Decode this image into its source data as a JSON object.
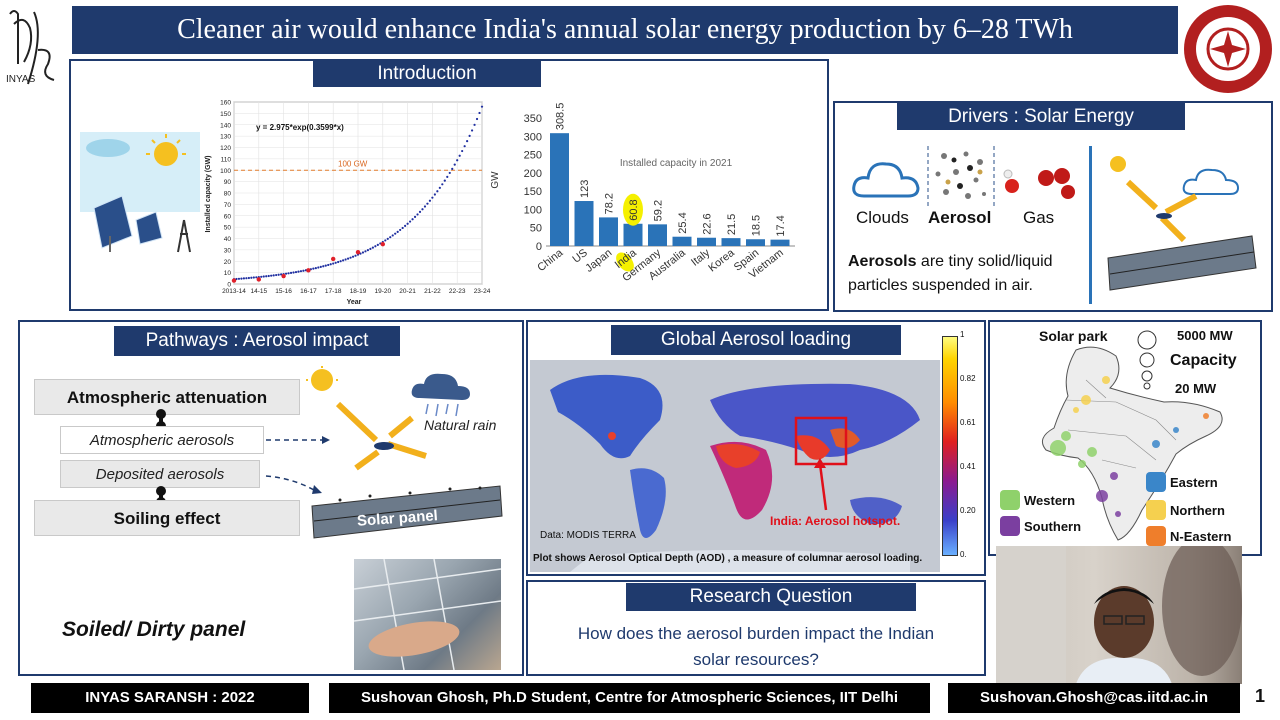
{
  "title": "Cleaner air would enhance India's annual solar energy production by 6–28 TWh",
  "left_logo": "INYAS",
  "intro": {
    "heading": "Introduction",
    "equation": "y = 2.975*exp(0.3599*x)",
    "threshold_label": "100 GW",
    "growth_chart": {
      "ylabel": "Installed capacity (GW)",
      "xlabel": "Year",
      "yticks": [
        "0",
        "10",
        "20",
        "30",
        "40",
        "50",
        "60",
        "70",
        "80",
        "90",
        "100",
        "110",
        "120",
        "130",
        "140",
        "150",
        "160"
      ],
      "xticks": [
        "2013-14",
        "14-15",
        "15-16",
        "16-17",
        "17-18",
        "18-19",
        "19-20",
        "20-21",
        "21-22",
        "22-23",
        "23-24"
      ]
    },
    "bar_chart": {
      "ylabel": "GW",
      "annotation": "Installed capacity in 2021",
      "yticks": [
        "0",
        "50",
        "100",
        "150",
        "200",
        "250",
        "300",
        "350"
      ]
    }
  },
  "chart_data": [
    {
      "type": "line",
      "title": "",
      "xlabel": "Year",
      "ylabel": "Installed capacity (GW)",
      "ylim": [
        0,
        160
      ],
      "x": [
        "2013-14",
        "14-15",
        "15-16",
        "16-17",
        "17-18",
        "18-19",
        "19-20",
        "20-21",
        "21-22",
        "22-23",
        "23-24"
      ],
      "series": [
        {
          "name": "",
          "values": [
            3,
            4,
            7,
            12,
            22,
            28,
            35,
            null,
            null,
            null,
            null
          ]
        }
      ],
      "fit": "y = 2.975*exp(0.3599*x)",
      "reference_line": 100
    },
    {
      "type": "bar",
      "title": "Installed capacity in 2021",
      "ylabel": "GW",
      "ylim": [
        0,
        350
      ],
      "categories": [
        "China",
        "US",
        "Japan",
        "India",
        "Germany",
        "Australia",
        "Italy",
        "Korea",
        "Spain",
        "Vietnam"
      ],
      "values": [
        308.5,
        123,
        78.2,
        60.8,
        59.2,
        25.4,
        22.6,
        21.5,
        18.5,
        17.4
      ],
      "value_labels": [
        "308.5",
        "123",
        "78.2",
        "60.8",
        "59.2",
        "25.4",
        "22.6",
        "21.5",
        "18.5",
        "17.4"
      ],
      "highlight": "India"
    }
  ],
  "drivers": {
    "heading": "Drivers : Solar Energy",
    "labels": {
      "clouds": "Clouds",
      "aerosol": "Aerosol",
      "gas": "Gas"
    },
    "desc_bold": "Aerosols",
    "desc_line1": " are tiny solid/liquid",
    "desc_line2": "particles suspended in air."
  },
  "pathways": {
    "heading": "Pathways : Aerosol impact",
    "atm_attenuation": "Atmospheric attenuation",
    "atm_aerosols": "Atmospheric aerosols",
    "dep_aerosols": "Deposited aerosols",
    "soiling": "Soiling effect",
    "natural_rain": "Natural rain",
    "solar_panel": "Solar panel",
    "soiled": "Soiled/ Dirty panel"
  },
  "global": {
    "heading": "Global Aerosol loading",
    "colorbar_ticks": [
      "1",
      "0.82",
      "0.61",
      "0.41",
      "0.20",
      "0."
    ],
    "hotspot": "India: Aerosol hotspot.",
    "data_src": "Data: MODIS TERRA",
    "caption": "Plot shows Aerosol Optical Depth (AOD) , a measure of columnar aerosol loading."
  },
  "solarpark": {
    "title": "Solar park",
    "cap_max": "5000 MW",
    "cap_label": "Capacity",
    "cap_min": "20 MW",
    "legend": [
      {
        "name": "Western",
        "color": "#8fd16b"
      },
      {
        "name": "Southern",
        "color": "#7b3fa0"
      },
      {
        "name": "Eastern",
        "color": "#3a86c9"
      },
      {
        "name": "Northern",
        "color": "#f5d04f"
      },
      {
        "name": "N-Eastern",
        "color": "#ef7e2b"
      }
    ]
  },
  "research": {
    "heading": "Research Question",
    "line1": "How does the aerosol burden impact the Indian",
    "line2": "solar resources?"
  },
  "footer": {
    "left": "INYAS SARANSH : 2022",
    "middle": "Sushovan Ghosh, Ph.D Student, Centre for Atmospheric Sciences, IIT Delhi",
    "right": "Sushovan.Ghosh@cas.iitd.ac.in",
    "page": "1"
  },
  "colors": {
    "navy": "#1f3a6d",
    "bar_blue": "#2a73b8",
    "hotspot_red": "#e0101a",
    "india_highlight": "#f5f000"
  }
}
